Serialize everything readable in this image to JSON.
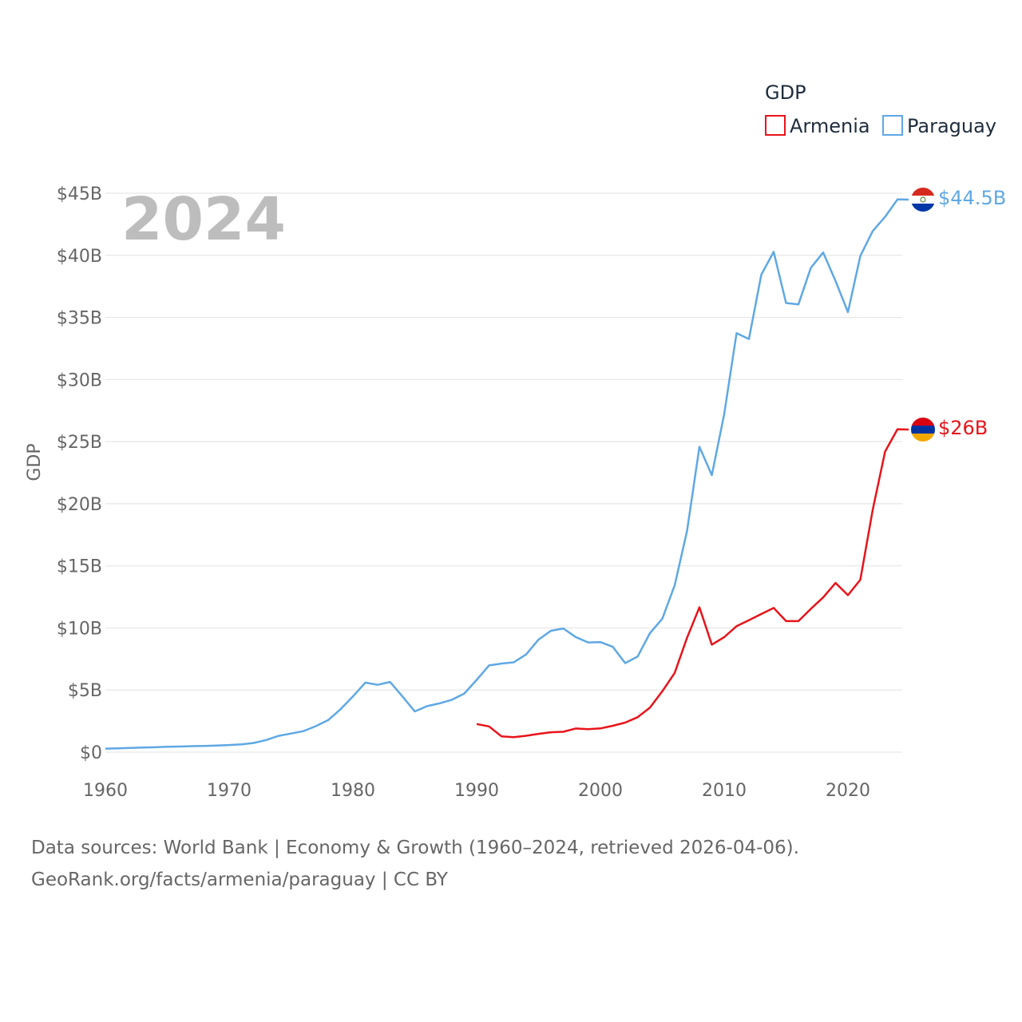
{
  "chart_data": {
    "type": "line",
    "title": "",
    "xlabel": "",
    "ylabel": "GDP",
    "xlim": [
      1960,
      2024
    ],
    "ylim": [
      0,
      45
    ],
    "yunit": "billions USD",
    "year_label": "2024",
    "x_ticks": [
      1960,
      1970,
      1980,
      1990,
      2000,
      2010,
      2020
    ],
    "x_tick_labels": [
      "1960",
      "1970",
      "1980",
      "1990",
      "2000",
      "2010",
      "2020"
    ],
    "y_ticks": [
      0,
      5,
      10,
      15,
      20,
      25,
      30,
      35,
      40,
      45
    ],
    "y_tick_labels": [
      "$0",
      "$5B",
      "$10B",
      "$15B",
      "$20B",
      "$25B",
      "$30B",
      "$35B",
      "$40B",
      "$45B"
    ],
    "legend": {
      "title": "GDP",
      "position": "top-right",
      "entries": [
        "Armenia",
        "Paraguay"
      ]
    },
    "series": [
      {
        "name": "Armenia",
        "color": "#e8141a",
        "end_label": "$26B",
        "flag": "armenia-flag",
        "x": [
          1990,
          1991,
          1992,
          1993,
          1994,
          1995,
          1996,
          1997,
          1998,
          1999,
          2000,
          2001,
          2002,
          2003,
          2004,
          2005,
          2006,
          2007,
          2008,
          2009,
          2010,
          2011,
          2012,
          2013,
          2014,
          2015,
          2016,
          2017,
          2018,
          2019,
          2020,
          2021,
          2022,
          2023,
          2024
        ],
        "values": [
          2.26,
          2.07,
          1.27,
          1.2,
          1.32,
          1.47,
          1.6,
          1.64,
          1.9,
          1.85,
          1.91,
          2.12,
          2.38,
          2.81,
          3.58,
          4.9,
          6.38,
          9.21,
          11.66,
          8.65,
          9.26,
          10.14,
          10.62,
          11.12,
          11.61,
          10.55,
          10.55,
          11.53,
          12.46,
          13.62,
          12.64,
          13.88,
          19.5,
          24.2,
          26.0
        ]
      },
      {
        "name": "Paraguay",
        "color": "#5fa8e4",
        "end_label": "$44.5B",
        "flag": "paraguay-flag",
        "x": [
          1960,
          1961,
          1962,
          1963,
          1964,
          1965,
          1966,
          1967,
          1968,
          1969,
          1970,
          1971,
          1972,
          1973,
          1974,
          1975,
          1976,
          1977,
          1978,
          1979,
          1980,
          1981,
          1982,
          1983,
          1984,
          1985,
          1986,
          1987,
          1988,
          1989,
          1990,
          1991,
          1992,
          1993,
          1994,
          1995,
          1996,
          1997,
          1998,
          1999,
          2000,
          2001,
          2002,
          2003,
          2004,
          2005,
          2006,
          2007,
          2008,
          2009,
          2010,
          2011,
          2012,
          2013,
          2014,
          2015,
          2016,
          2017,
          2018,
          2019,
          2020,
          2021,
          2022,
          2023,
          2024
        ],
        "values": [
          0.28,
          0.31,
          0.34,
          0.37,
          0.39,
          0.43,
          0.45,
          0.48,
          0.5,
          0.53,
          0.57,
          0.63,
          0.74,
          0.98,
          1.31,
          1.5,
          1.69,
          2.09,
          2.58,
          3.45,
          4.48,
          5.6,
          5.42,
          5.65,
          4.49,
          3.28,
          3.7,
          3.93,
          4.22,
          4.72,
          5.82,
          6.98,
          7.13,
          7.23,
          7.87,
          9.06,
          9.77,
          9.96,
          9.27,
          8.83,
          8.86,
          8.48,
          7.17,
          7.69,
          9.58,
          10.74,
          13.43,
          17.82,
          24.58,
          22.3,
          27.21,
          33.73,
          33.26,
          38.44,
          40.28,
          36.16,
          36.05,
          38.99,
          40.23,
          37.93,
          35.43,
          39.95,
          41.95,
          43.1,
          44.5
        ]
      }
    ]
  },
  "footer": {
    "line1": "Data sources: World Bank | Economy & Growth (1960–2024, retrieved 2026-04-06).",
    "line2": "GeoRank.org/facts/armenia/paraguay | CC BY"
  }
}
